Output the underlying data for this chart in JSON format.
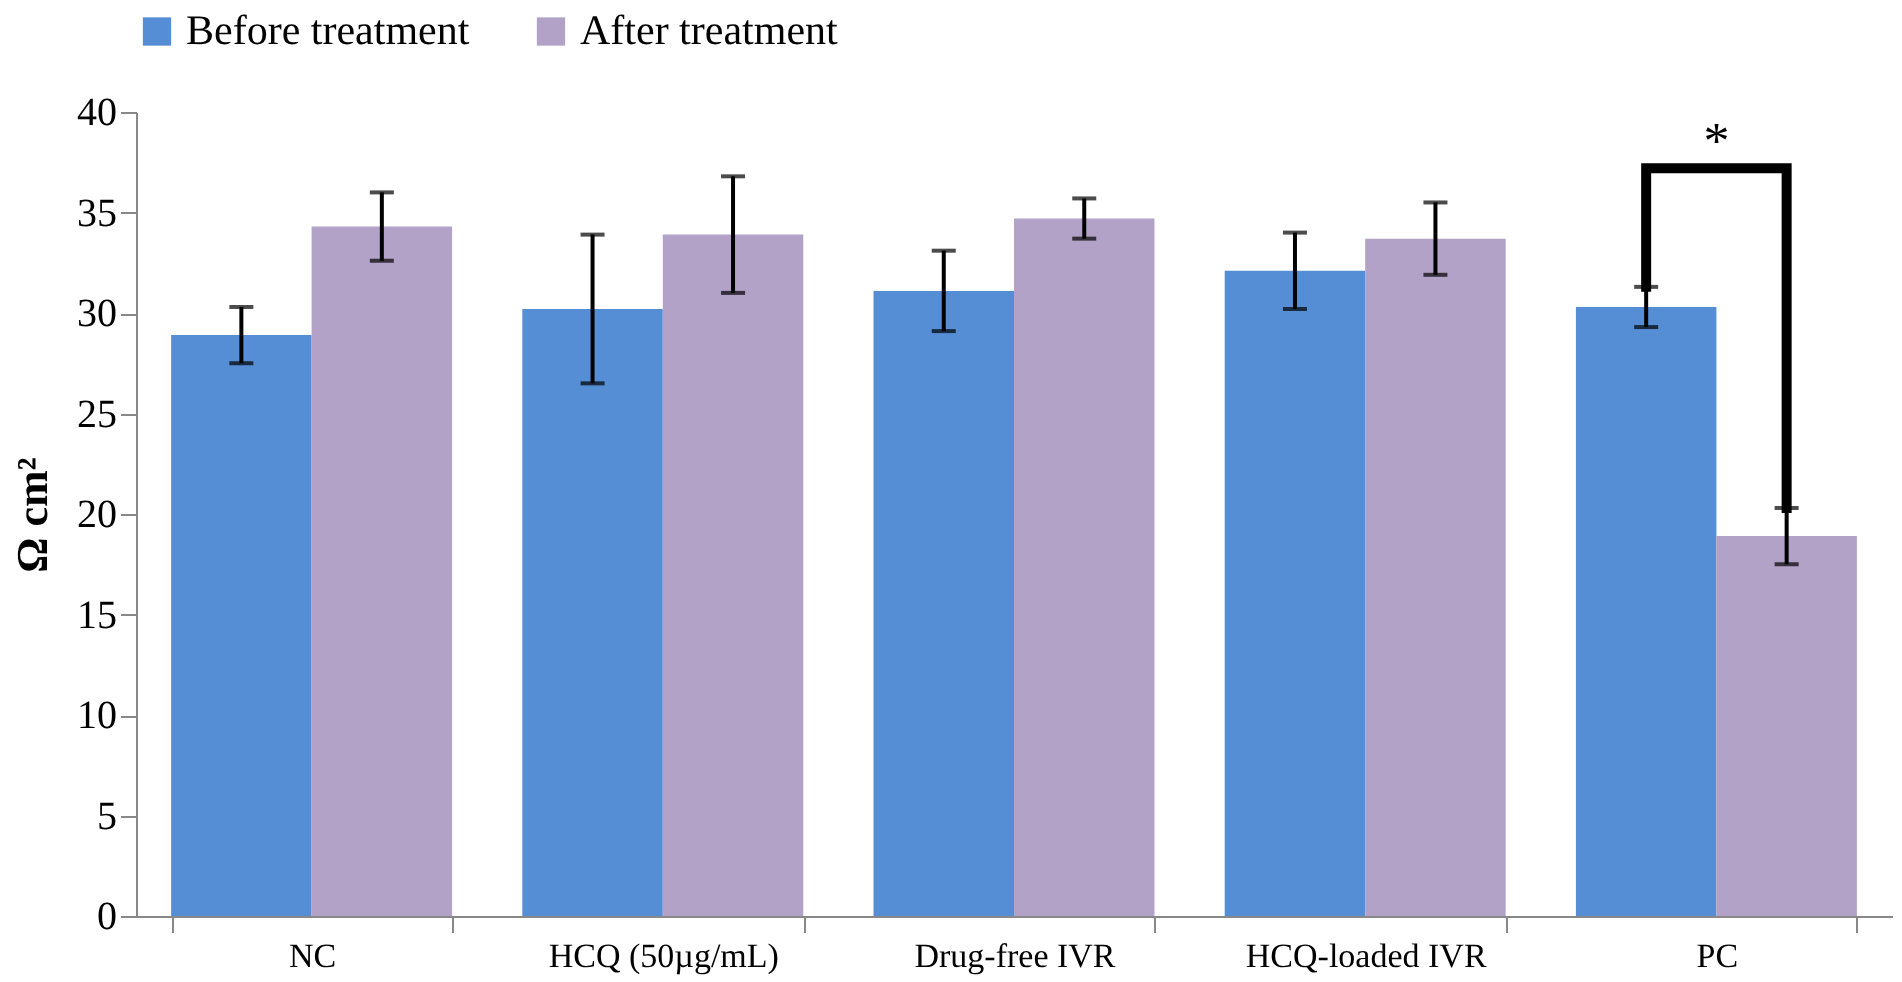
{
  "chart_data": {
    "type": "bar",
    "ylabel": "Ω cm²",
    "categories": [
      "NC",
      "HCQ (50µg/mL)",
      "Drug-free IVR",
      "HCQ-loaded IVR",
      "PC"
    ],
    "series": [
      {
        "name": "Before treatment",
        "color": "#558ed5",
        "values": [
          28.9,
          30.2,
          31.1,
          32.1,
          30.3
        ],
        "errors": [
          1.4,
          3.7,
          2.0,
          1.9,
          1.0
        ]
      },
      {
        "name": "After treatment",
        "color": "#b3a2c7",
        "values": [
          34.3,
          33.9,
          34.7,
          33.7,
          18.9
        ],
        "errors": [
          1.7,
          2.9,
          1.0,
          1.8,
          1.4
        ]
      }
    ],
    "ylim": [
      0,
      40
    ],
    "yticks": [
      0,
      5,
      10,
      15,
      20,
      25,
      30,
      35,
      40
    ],
    "grid": false,
    "legend": "top",
    "annotations": [
      "*"
    ]
  }
}
